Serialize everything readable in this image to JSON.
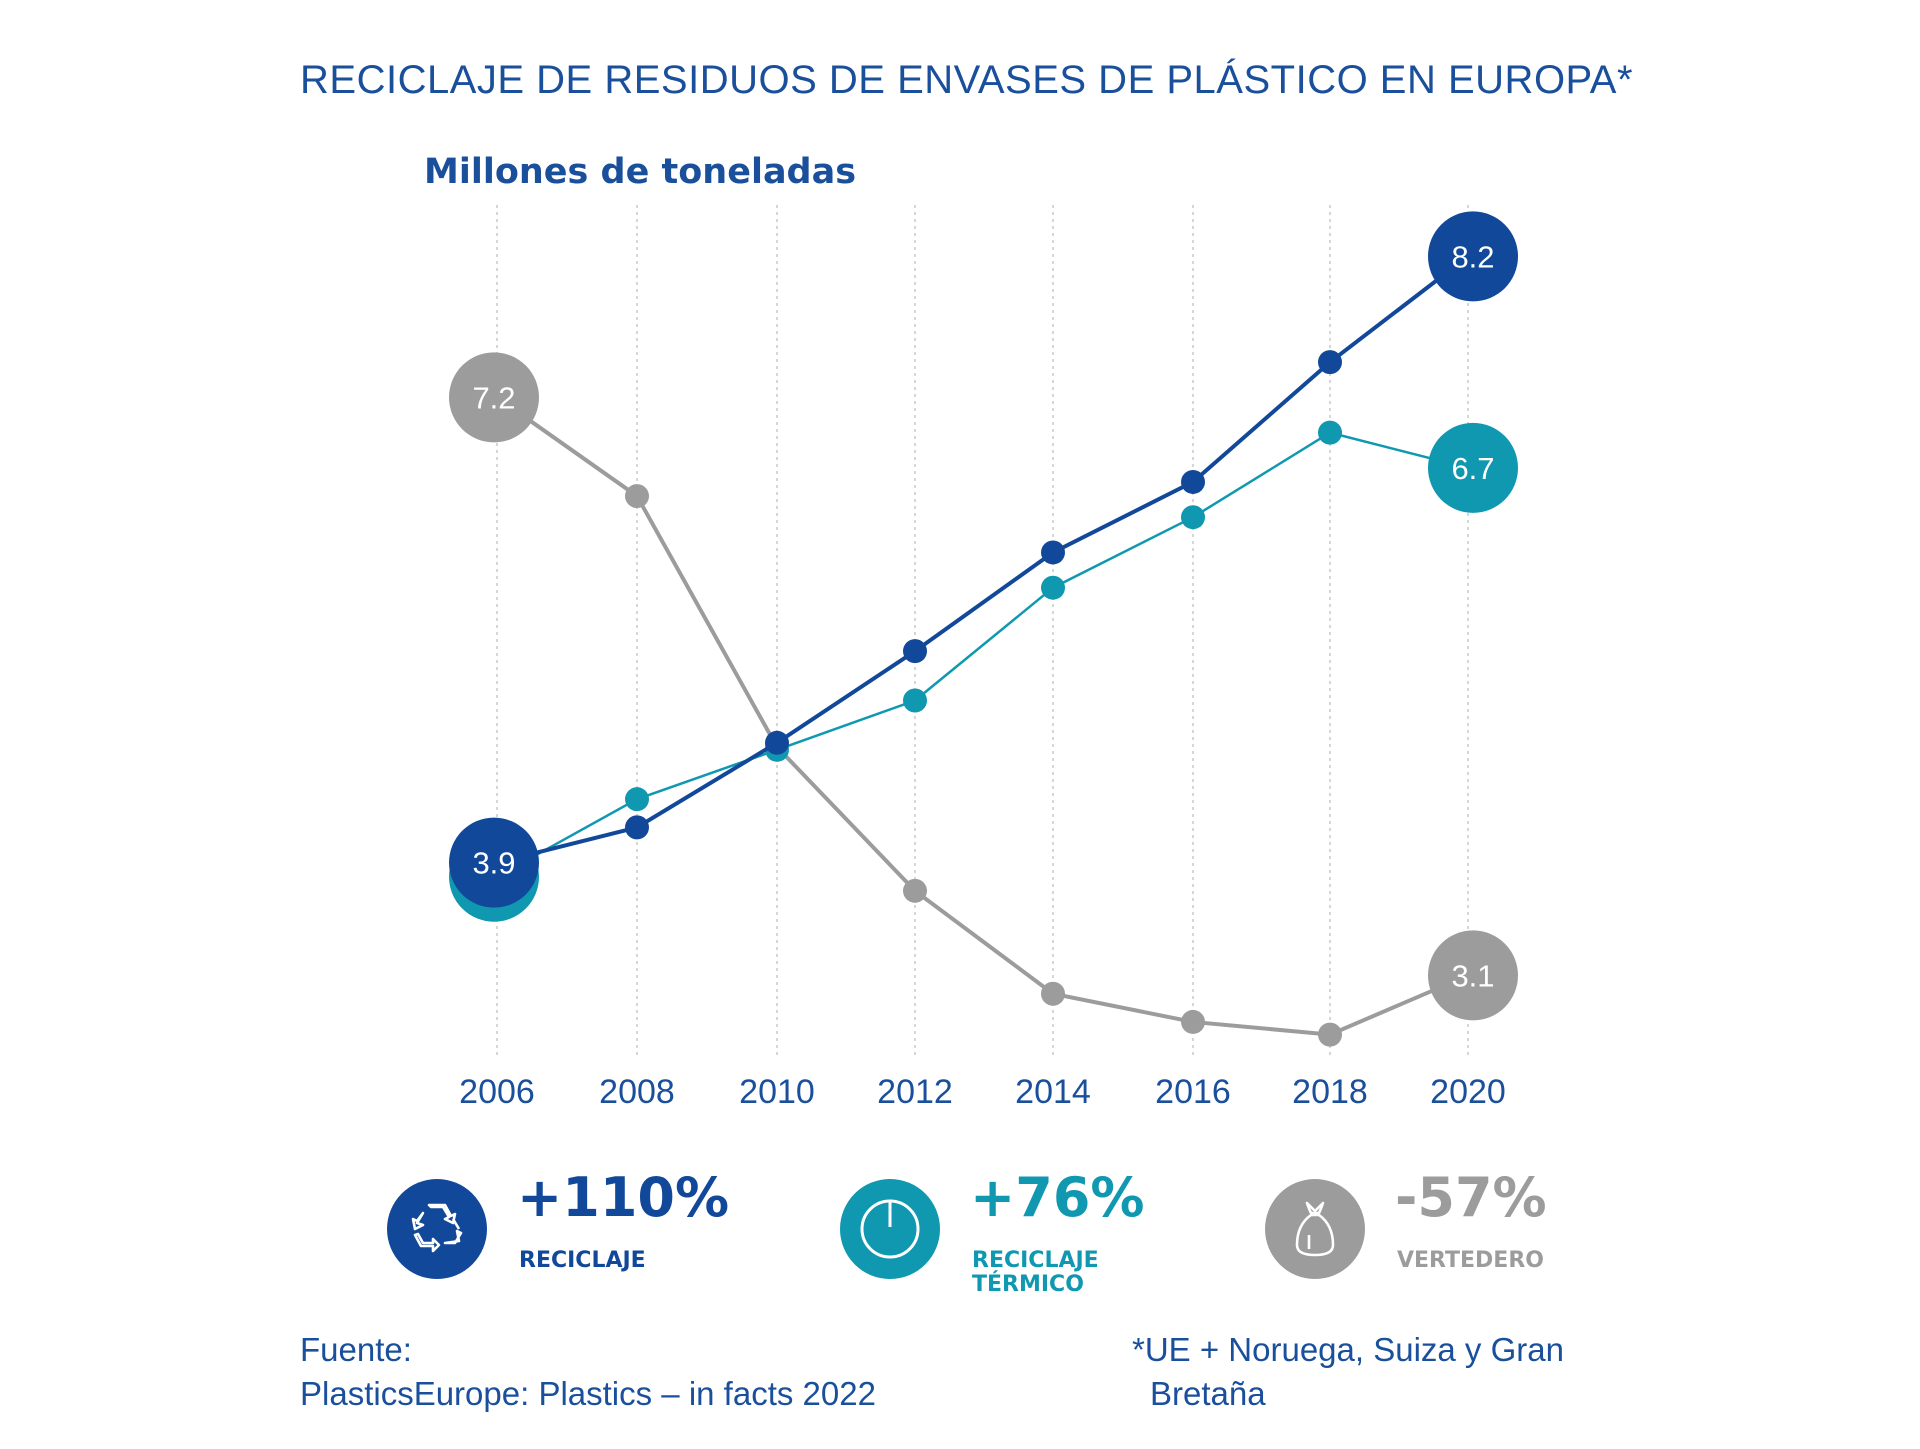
{
  "title": "RECICLAJE DE RESIDUOS DE ENVASES DE PLÁSTICO EN EUROPA*",
  "chart_data": {
    "type": "line",
    "ylabel": "Millones de toneladas",
    "xlabel": "",
    "x": [
      2006,
      2008,
      2010,
      2012,
      2014,
      2016,
      2018,
      2020
    ],
    "ylim": [
      2.5,
      8.6
    ],
    "grid": "vertical dashed",
    "series": [
      {
        "name": "RECICLAJE",
        "color": "#12489a",
        "values": [
          3.9,
          4.15,
          4.75,
          5.4,
          6.1,
          6.6,
          7.45,
          8.2
        ],
        "labels": {
          "0": "3.9",
          "7": "8.2"
        }
      },
      {
        "name": "RECICLAJE TÉRMICO",
        "color": "#0f98b0",
        "values": [
          3.8,
          4.35,
          4.7,
          5.05,
          5.85,
          6.35,
          6.95,
          6.7
        ],
        "labels": {
          "0": "3.8",
          "7": "6.7"
        }
      },
      {
        "name": "VERTEDERO",
        "color": "#9c9c9c",
        "values": [
          7.2,
          6.5,
          4.72,
          3.7,
          2.97,
          2.77,
          2.68,
          3.1
        ],
        "labels": {
          "0": "7.2",
          "7": "3.1"
        }
      }
    ]
  },
  "stats": [
    {
      "value": "+110%",
      "label": "RECICLAJE",
      "color": "#12489a",
      "icon": "recycle-icon"
    },
    {
      "value": "+76%",
      "label": "RECICLAJE TÉRMICO",
      "color": "#0f98b0",
      "icon": "power-icon"
    },
    {
      "value": "-57%",
      "label": "VERTEDERO",
      "color": "#9c9c9c",
      "icon": "garbage-bag-icon"
    }
  ],
  "footer": {
    "source_label": "Fuente:",
    "source": "PlasticsEurope: Plastics – in facts 2022",
    "note_line1": "*UE + Noruega, Suiza y Gran",
    "note_line2": "Bretaña"
  }
}
